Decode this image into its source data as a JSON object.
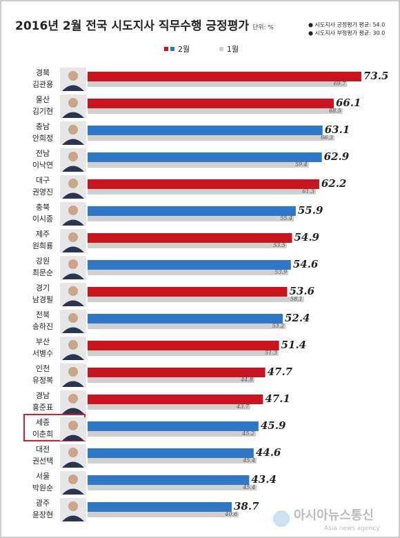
{
  "chart_data": {
    "type": "hbar",
    "title": "2016년 2월 전국 시도지사 직무수행 긍정평가",
    "unit": "단위: %",
    "notes": [
      "● 시도지사 긍정평가 평균: 54.0",
      "● 시도지사 부정평가 평균: 30.0"
    ],
    "watermark": [
      "아시아뉴스통신",
      "Asia news agency"
    ],
    "categories": [
      [
        "경북",
        "김관용"
      ],
      [
        "울산",
        "김기현"
      ],
      [
        "충남",
        "안희정"
      ],
      [
        "전남",
        "이낙연"
      ],
      [
        "대구",
        "권영진"
      ],
      [
        "충북",
        "이시종"
      ],
      [
        "제주",
        "원희룡"
      ],
      [
        "강원",
        "최문순"
      ],
      [
        "경기",
        "남경필"
      ],
      [
        "전북",
        "송하진"
      ],
      [
        "부산",
        "서병수"
      ],
      [
        "인천",
        "유정복"
      ],
      [
        "경남",
        "홍준표"
      ],
      [
        "세종",
        "이춘희"
      ],
      [
        "대전",
        "권선택"
      ],
      [
        "서울",
        "박원순"
      ],
      [
        "광주",
        "윤장현"
      ]
    ],
    "series": [
      {
        "name": "2월",
        "values": [
          73.5,
          66.1,
          63.1,
          62.9,
          62.2,
          55.9,
          54.9,
          54.6,
          53.6,
          52.4,
          51.4,
          47.7,
          47.1,
          45.9,
          44.6,
          43.4,
          38.7
        ],
        "colors": [
          "#c8141e",
          "#c8141e",
          "#2f78c8",
          "#2f78c8",
          "#c8141e",
          "#2f78c8",
          "#c8141e",
          "#2f78c8",
          "#c8141e",
          "#2f78c8",
          "#c8141e",
          "#c8141e",
          "#c8141e",
          "#2f78c8",
          "#2f78c8",
          "#2f78c8",
          "#2f78c8"
        ]
      },
      {
        "name": "1월",
        "color": "#cfcfcf",
        "values": [
          69.7,
          68.5,
          66.3,
          59.4,
          61.3,
          55.4,
          53.5,
          53.9,
          58.1,
          53.2,
          51.3,
          44.8,
          43.7,
          45.2,
          45.4,
          45.4,
          40.6
        ]
      }
    ],
    "xlim": [
      0,
      80
    ]
  }
}
